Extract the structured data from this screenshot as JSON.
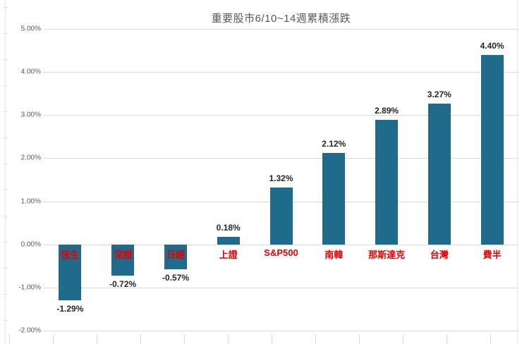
{
  "title": "重要股市6/10~14週累積漲跌",
  "colors": {
    "bar": "#1f6b8c",
    "category_label": "#e60000",
    "value_label": "#262626",
    "axis_label": "#595959",
    "gridline": "#d9d9d9",
    "background": "#ffffff"
  },
  "chart_data": {
    "type": "bar",
    "title": "重要股市6/10~14週累積漲跌",
    "categories": [
      "恆生",
      "深證",
      "日經",
      "上證",
      "S&P500",
      "南韓",
      "那斯達克",
      "台灣",
      "費半"
    ],
    "values": [
      -1.29,
      -0.72,
      -0.57,
      0.18,
      1.32,
      2.12,
      2.89,
      3.27,
      4.4
    ],
    "value_labels": [
      "-1.29%",
      "-0.72%",
      "-0.57%",
      "0.18%",
      "1.32%",
      "2.12%",
      "2.89%",
      "3.27%",
      "4.40%"
    ],
    "xlabel": "",
    "ylabel": "",
    "ylim": [
      -2,
      5
    ],
    "yticks": [
      5,
      4,
      3,
      2,
      1,
      0,
      -1,
      -2
    ],
    "ytick_labels": [
      "5.00%",
      "4.00%",
      "3.00%",
      "2.00%",
      "1.00%",
      "0.00%",
      "-1.00%",
      "-2.00%"
    ],
    "grid": true,
    "legend": false,
    "value_label_position": "outside-end",
    "category_label_position": "below-zero-axis"
  }
}
